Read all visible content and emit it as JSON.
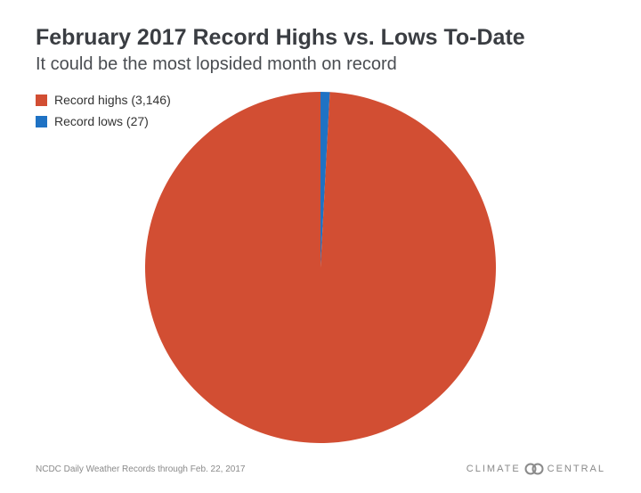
{
  "chart_data": {
    "type": "pie",
    "title": "February 2017 Record Highs vs. Lows To-Date",
    "subtitle": "It could be the most lopsided month on record",
    "slices": [
      {
        "label": "Record highs (3,146)",
        "value": 3146,
        "color": "#d24e33"
      },
      {
        "label": "Record lows (27)",
        "value": 27,
        "color": "#1f72c4"
      }
    ],
    "legend_position": "top-left"
  },
  "footer": {
    "source": "NCDC Daily Weather Records through Feb. 22, 2017",
    "logo_left": "CLIMATE",
    "logo_right": "CENTRAL"
  }
}
